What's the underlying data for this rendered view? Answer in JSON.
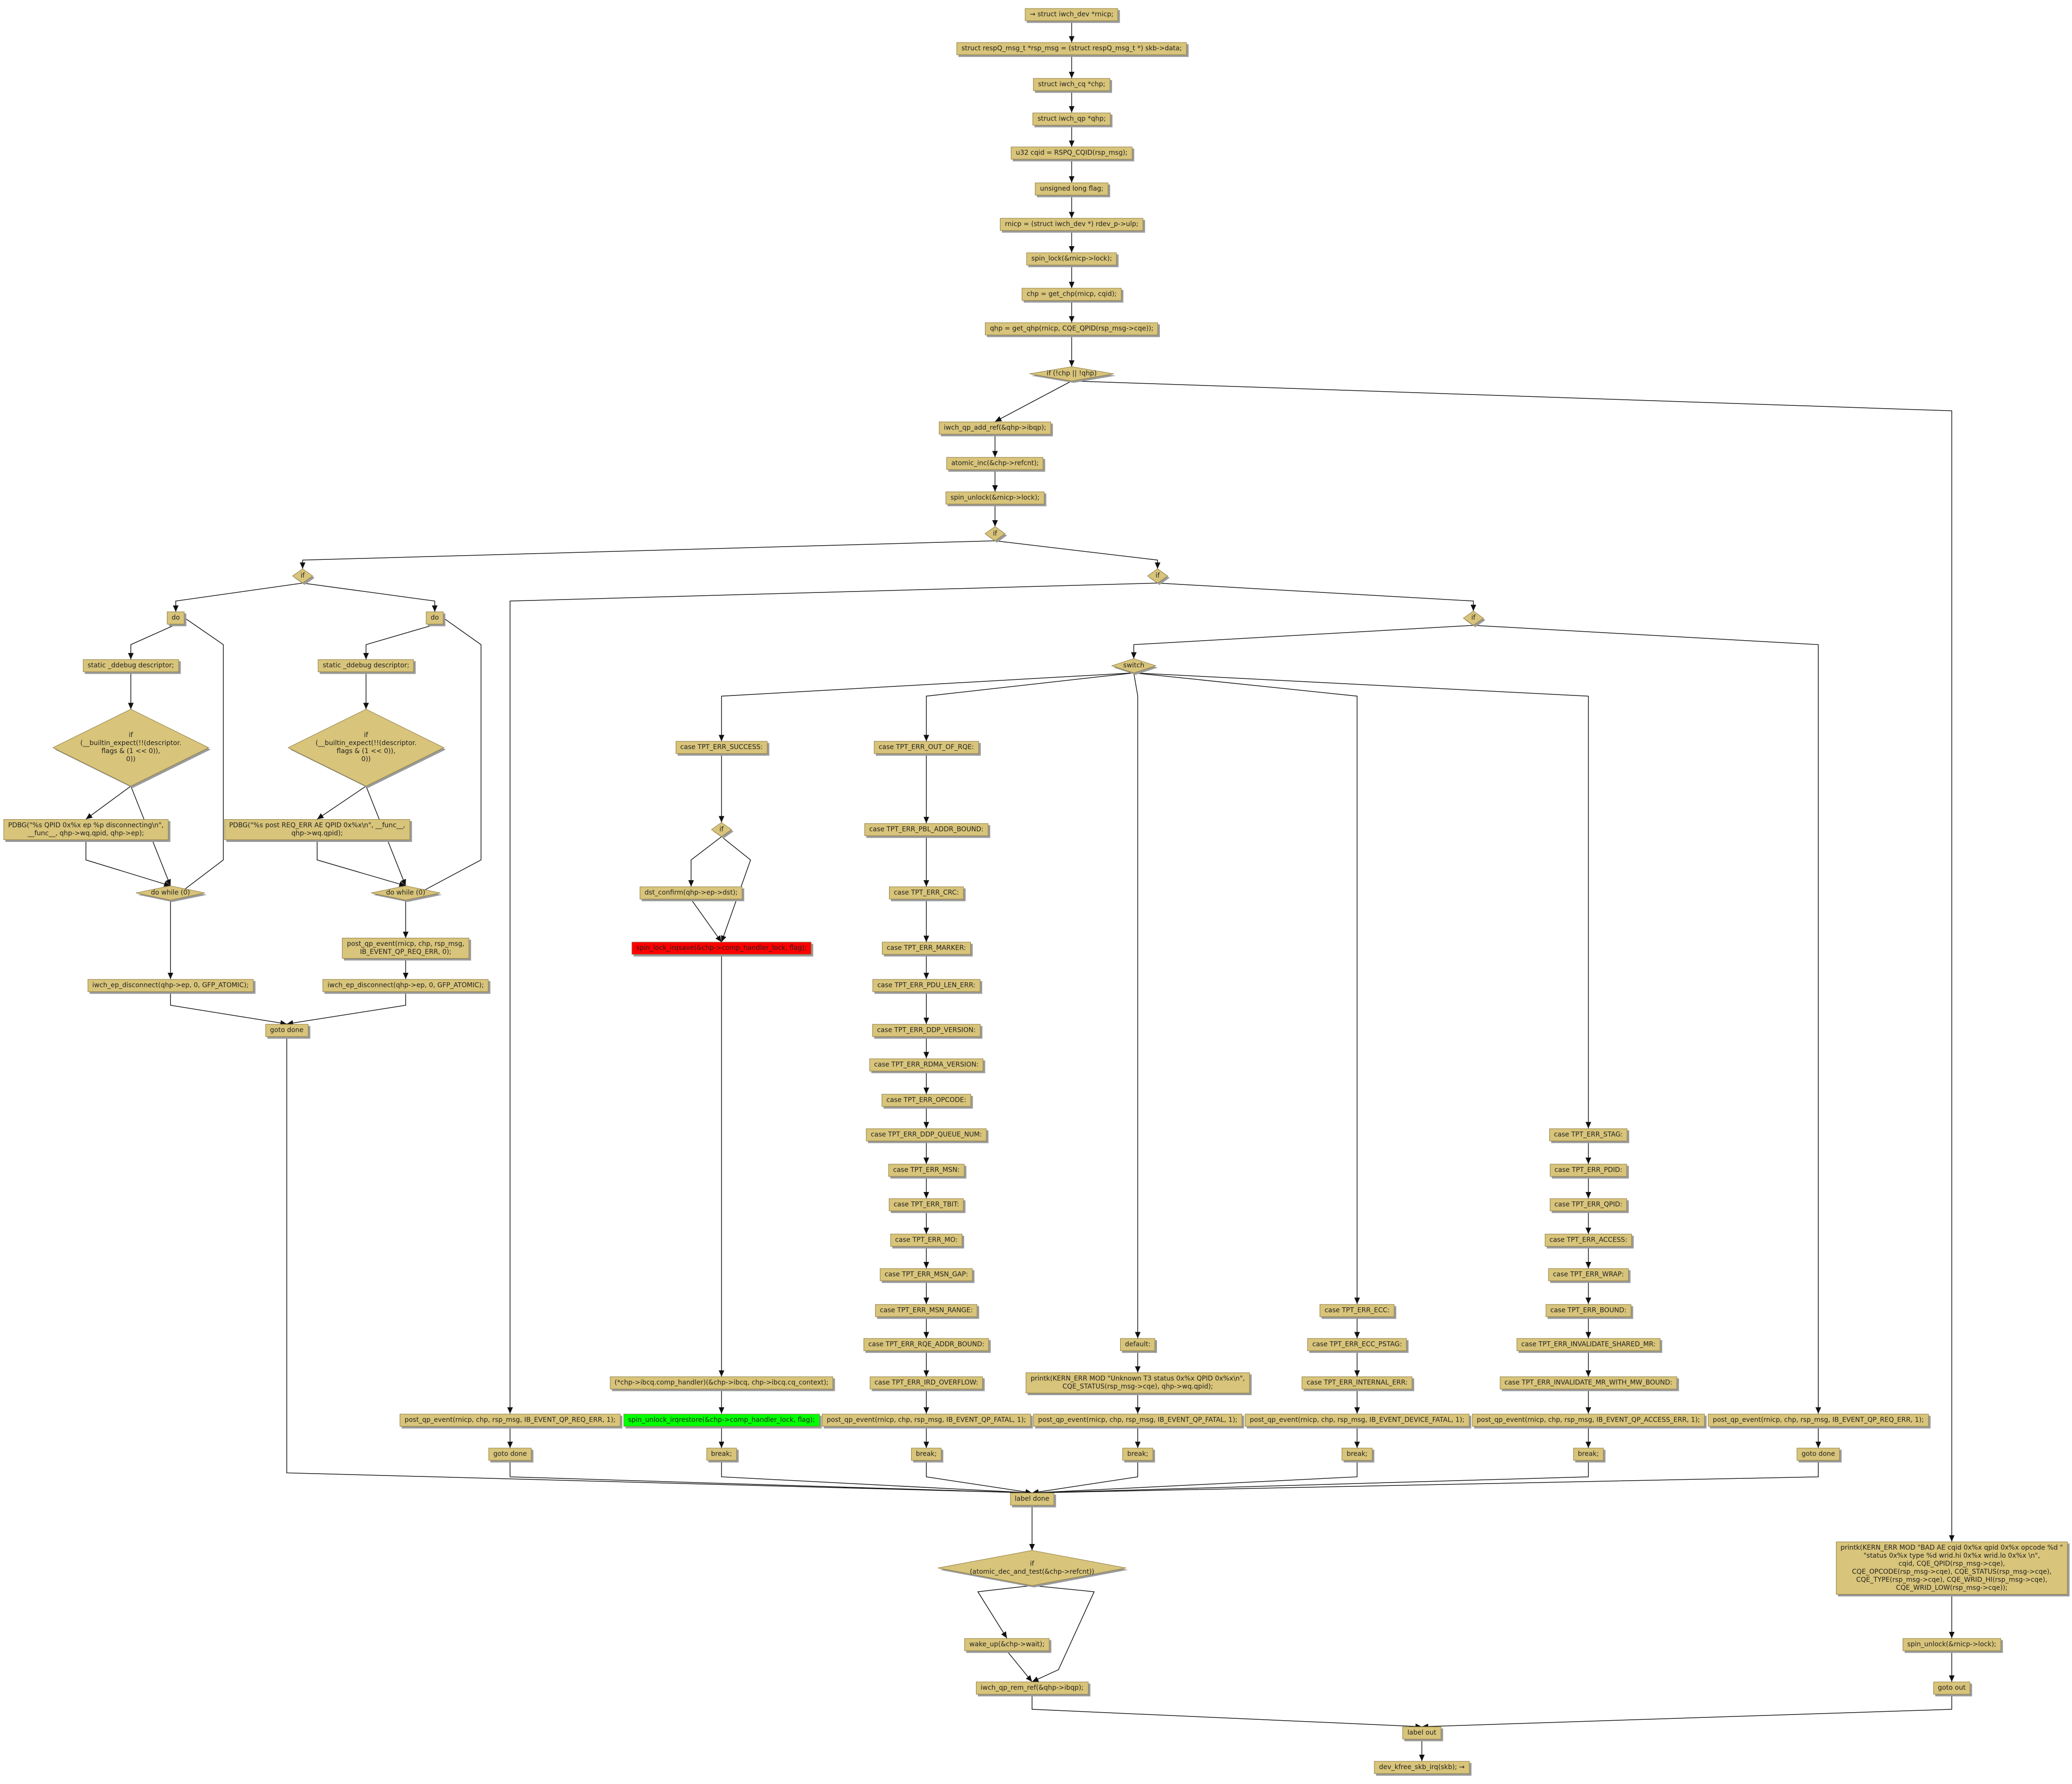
{
  "nodes": [
    {
      "label": "→ struct iwch_dev *rnicp;"
    },
    {
      "label": "struct respQ_msg_t *rsp_msg = (struct respQ_msg_t *) skb->data;"
    },
    {
      "label": "struct iwch_cq *chp;"
    },
    {
      "label": "struct iwch_qp *qhp;"
    },
    {
      "label": "u32 cqid = RSPQ_CQID(rsp_msg);"
    },
    {
      "label": "unsigned long flag;"
    },
    {
      "label": "rnicp = (struct iwch_dev *) rdev_p->ulp;"
    },
    {
      "label": "spin_lock(&rnicp->lock);"
    },
    {
      "label": "chp = get_chp(rnicp, cqid);"
    },
    {
      "label": "qhp = get_qhp(rnicp, CQE_QPID(rsp_msg->cqe));"
    },
    {
      "label": "if (!chp || !qhp)"
    },
    {
      "label": "iwch_qp_add_ref(&qhp->ibqp);"
    },
    {
      "label": "atomic_inc(&chp->refcnt);"
    },
    {
      "label": "spin_unlock(&rnicp->lock);"
    },
    {
      "label": "if"
    },
    {
      "label": "if"
    },
    {
      "label": "if"
    },
    {
      "label": "do"
    },
    {
      "label": "do"
    },
    {
      "label": "static _ddebug descriptor;"
    },
    {
      "label": "static _ddebug descriptor;"
    },
    {
      "label": "if\n(__builtin_expect(!!(descriptor.\nflags & (1 << 0)),\n0))"
    },
    {
      "label": "if\n(__builtin_expect(!!(descriptor.\nflags & (1 << 0)),\n0))"
    },
    {
      "label": "PDBG(\"%s QPID 0x%x ep %p disconnecting\\n\",\n__func__, qhp->wq.qpid, qhp->ep);"
    },
    {
      "label": "PDBG(\"%s post REQ_ERR AE QPID 0x%x\\n\", __func__,\nqhp->wq.qpid);"
    },
    {
      "label": "do while (0)"
    },
    {
      "label": "do while (0)"
    },
    {
      "label": "post_qp_event(rnicp, chp, rsp_msg,\nIB_EVENT_QP_REQ_ERR, 0);"
    },
    {
      "label": "iwch_ep_disconnect(qhp->ep, 0, GFP_ATOMIC);"
    },
    {
      "label": "iwch_ep_disconnect(qhp->ep, 0, GFP_ATOMIC);"
    },
    {
      "label": "goto done"
    },
    {
      "label": "if"
    },
    {
      "label": "switch"
    },
    {
      "label": "case TPT_ERR_SUCCESS:"
    },
    {
      "label": "if"
    },
    {
      "label": "dst_confirm(qhp->ep->dst);"
    },
    {
      "label": "spin_lock_irqsave(&chp->comp_handler_lock, flag);"
    },
    {
      "label": "(*chp->ibcq.comp_handler)(&chp->ibcq, chp->ibcq.cq_context);"
    },
    {
      "label": "spin_unlock_irqrestore(&chp->comp_handler_lock, flag);"
    },
    {
      "label": "break;"
    },
    {
      "label": "case TPT_ERR_OUT_OF_RQE:"
    },
    {
      "label": "case TPT_ERR_PBL_ADDR_BOUND:"
    },
    {
      "label": "case TPT_ERR_CRC:"
    },
    {
      "label": "case TPT_ERR_MARKER:"
    },
    {
      "label": "case TPT_ERR_PDU_LEN_ERR:"
    },
    {
      "label": "case TPT_ERR_DDP_VERSION:"
    },
    {
      "label": "case TPT_ERR_RDMA_VERSION:"
    },
    {
      "label": "case TPT_ERR_OPCODE:"
    },
    {
      "label": "case TPT_ERR_DDP_QUEUE_NUM:"
    },
    {
      "label": "case TPT_ERR_MSN:"
    },
    {
      "label": "case TPT_ERR_TBIT:"
    },
    {
      "label": "case TPT_ERR_MO:"
    },
    {
      "label": "case TPT_ERR_MSN_GAP:"
    },
    {
      "label": "case TPT_ERR_MSN_RANGE:"
    },
    {
      "label": "case TPT_ERR_RQE_ADDR_BOUND:"
    },
    {
      "label": "case TPT_ERR_IRD_OVERFLOW:"
    },
    {
      "label": "post_qp_event(rnicp, chp, rsp_msg, IB_EVENT_QP_FATAL, 1);"
    },
    {
      "label": "break;"
    },
    {
      "label": "default:"
    },
    {
      "label": "printk(KERN_ERR MOD \"Unknown T3 status 0x%x QPID 0x%x\\n\",\nCQE_STATUS(rsp_msg->cqe), qhp->wq.qpid);"
    },
    {
      "label": "post_qp_event(rnicp, chp, rsp_msg, IB_EVENT_QP_FATAL, 1);"
    },
    {
      "label": "break;"
    },
    {
      "label": "case TPT_ERR_ECC:"
    },
    {
      "label": "case TPT_ERR_ECC_PSTAG:"
    },
    {
      "label": "case TPT_ERR_INTERNAL_ERR:"
    },
    {
      "label": "post_qp_event(rnicp, chp, rsp_msg, IB_EVENT_DEVICE_FATAL, 1);"
    },
    {
      "label": "break;"
    },
    {
      "label": "case TPT_ERR_STAG:"
    },
    {
      "label": "case TPT_ERR_PDID:"
    },
    {
      "label": "case TPT_ERR_QPID:"
    },
    {
      "label": "case TPT_ERR_ACCESS:"
    },
    {
      "label": "case TPT_ERR_WRAP:"
    },
    {
      "label": "case TPT_ERR_BOUND:"
    },
    {
      "label": "case TPT_ERR_INVALIDATE_SHARED_MR:"
    },
    {
      "label": "case TPT_ERR_INVALIDATE_MR_WITH_MW_BOUND:"
    },
    {
      "label": "post_qp_event(rnicp, chp, rsp_msg, IB_EVENT_QP_ACCESS_ERR, 1);"
    },
    {
      "label": "break;"
    },
    {
      "label": "post_qp_event(rnicp, chp, rsp_msg, IB_EVENT_QP_REQ_ERR, 1);"
    },
    {
      "label": "goto done"
    },
    {
      "label": "post_qp_event(rnicp, chp, rsp_msg, IB_EVENT_QP_REQ_ERR, 1);"
    },
    {
      "label": "goto done"
    },
    {
      "label": "label done"
    },
    {
      "label": "if\n(atomic_dec_and_test(&chp->refcnt))"
    },
    {
      "label": "wake_up(&chp->wait);"
    },
    {
      "label": "iwch_qp_rem_ref(&qhp->ibqp);"
    },
    {
      "label": "label out"
    },
    {
      "label": "dev_kfree_skb_irq(skb); →"
    },
    {
      "label": "printk(KERN_ERR MOD \"BAD AE cqid 0x%x qpid 0x%x opcode %d \"\n\"status 0x%x type %d wrid.hi 0x%x wrid.lo 0x%x \\n\",\ncqid, CQE_QPID(rsp_msg->cqe),\nCQE_OPCODE(rsp_msg->cqe), CQE_STATUS(rsp_msg->cqe),\nCQE_TYPE(rsp_msg->cqe), CQE_WRID_HI(rsp_msg->cqe),\nCQE_WRID_LOW(rsp_msg->cqe));"
    },
    {
      "label": "spin_unlock(&rnicp->lock);"
    },
    {
      "label": "goto out"
    }
  ]
}
